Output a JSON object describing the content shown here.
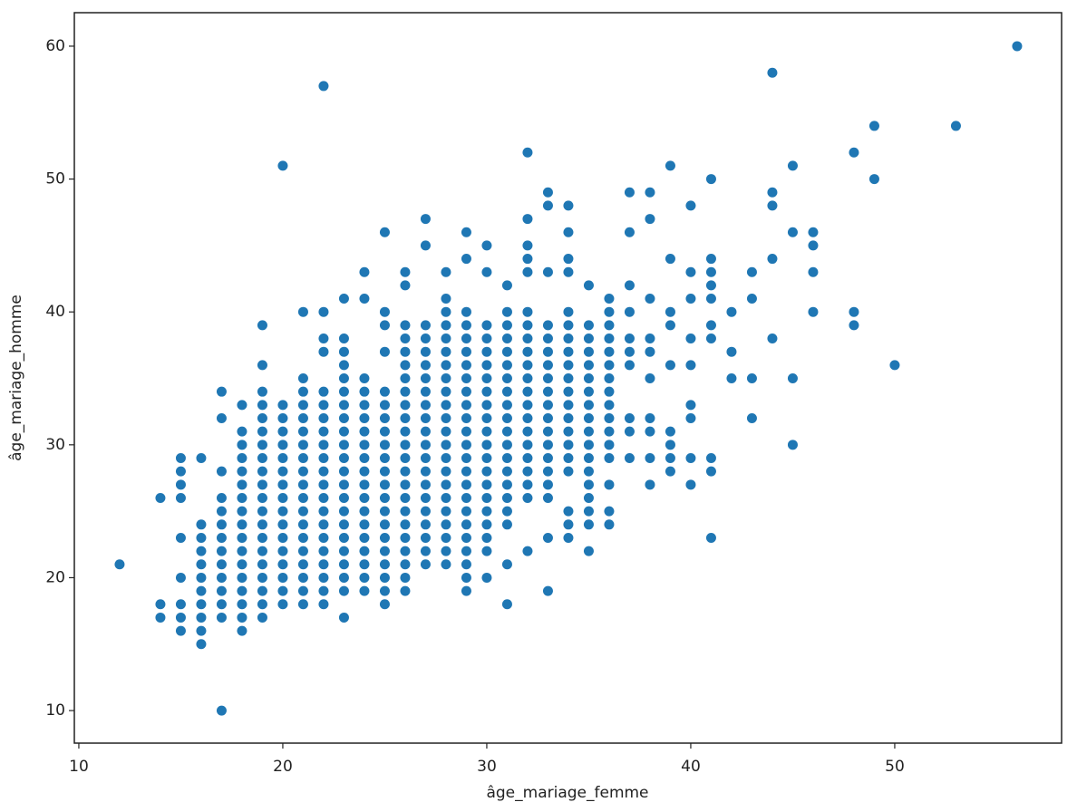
{
  "chart_data": {
    "type": "scatter",
    "xlabel": "âge_mariage_femme",
    "ylabel": "âge_mariage_homme",
    "color": "#1f77b4",
    "xlim": [
      9.78,
      58.18
    ],
    "ylim": [
      7.55,
      62.52
    ],
    "xticks": [
      10,
      20,
      30,
      40,
      50
    ],
    "yticks": [
      10,
      20,
      30,
      40,
      50,
      60
    ],
    "x": [
      12,
      14,
      14,
      14,
      15,
      15,
      15,
      15,
      15,
      15,
      15,
      15,
      15,
      16,
      16,
      16,
      16,
      16,
      16,
      16,
      16,
      16,
      16,
      16,
      17,
      17,
      17,
      17,
      17,
      17,
      17,
      17,
      17,
      17,
      17,
      17,
      17,
      17,
      18,
      18,
      18,
      18,
      18,
      18,
      18,
      18,
      18,
      18,
      18,
      18,
      18,
      18,
      18,
      18,
      18,
      19,
      19,
      19,
      19,
      19,
      19,
      19,
      19,
      19,
      19,
      19,
      19,
      19,
      19,
      19,
      19,
      19,
      19,
      19,
      19,
      20,
      20,
      20,
      20,
      20,
      20,
      20,
      20,
      20,
      20,
      20,
      20,
      20,
      20,
      20,
      20,
      20,
      21,
      21,
      21,
      21,
      21,
      21,
      21,
      21,
      21,
      21,
      21,
      21,
      21,
      21,
      21,
      21,
      21,
      21,
      21,
      22,
      22,
      22,
      22,
      22,
      22,
      22,
      22,
      22,
      22,
      22,
      22,
      22,
      22,
      22,
      22,
      22,
      22,
      22,
      22,
      22,
      23,
      23,
      23,
      23,
      23,
      23,
      23,
      23,
      23,
      23,
      23,
      23,
      23,
      23,
      23,
      23,
      23,
      23,
      23,
      23,
      23,
      23,
      24,
      24,
      24,
      24,
      24,
      24,
      24,
      24,
      24,
      24,
      24,
      24,
      24,
      24,
      24,
      24,
      24,
      24,
      24,
      25,
      25,
      25,
      25,
      25,
      25,
      25,
      25,
      25,
      25,
      25,
      25,
      25,
      25,
      25,
      25,
      25,
      25,
      25,
      25,
      25,
      26,
      26,
      26,
      26,
      26,
      26,
      26,
      26,
      26,
      26,
      26,
      26,
      26,
      26,
      26,
      26,
      26,
      26,
      26,
      26,
      26,
      26,
      26,
      27,
      27,
      27,
      27,
      27,
      27,
      27,
      27,
      27,
      27,
      27,
      27,
      27,
      27,
      27,
      27,
      27,
      27,
      27,
      27,
      27,
      28,
      28,
      28,
      28,
      28,
      28,
      28,
      28,
      28,
      28,
      28,
      28,
      28,
      28,
      28,
      28,
      28,
      28,
      28,
      28,
      28,
      28,
      29,
      29,
      29,
      29,
      29,
      29,
      29,
      29,
      29,
      29,
      29,
      29,
      29,
      29,
      29,
      29,
      29,
      29,
      29,
      29,
      29,
      29,
      29,
      29,
      30,
      30,
      30,
      30,
      30,
      30,
      30,
      30,
      30,
      30,
      30,
      30,
      30,
      30,
      30,
      30,
      30,
      30,
      30,
      30,
      30,
      31,
      31,
      31,
      31,
      31,
      31,
      31,
      31,
      31,
      31,
      31,
      31,
      31,
      31,
      31,
      31,
      31,
      31,
      31,
      31,
      32,
      32,
      32,
      32,
      32,
      32,
      32,
      32,
      32,
      32,
      32,
      32,
      32,
      32,
      32,
      32,
      32,
      32,
      32,
      32,
      32,
      33,
      33,
      33,
      33,
      33,
      33,
      33,
      33,
      33,
      33,
      33,
      33,
      33,
      33,
      33,
      33,
      33,
      33,
      33,
      34,
      34,
      34,
      34,
      34,
      34,
      34,
      34,
      34,
      34,
      34,
      34,
      34,
      34,
      34,
      34,
      34,
      34,
      34,
      34,
      35,
      35,
      35,
      35,
      35,
      35,
      35,
      35,
      35,
      35,
      35,
      35,
      35,
      35,
      35,
      35,
      35,
      35,
      36,
      36,
      36,
      36,
      36,
      36,
      36,
      36,
      36,
      36,
      36,
      36,
      36,
      36,
      36,
      36,
      37,
      37,
      37,
      37,
      37,
      37,
      37,
      37,
      37,
      37,
      38,
      38,
      38,
      38,
      38,
      38,
      38,
      38,
      38,
      38,
      39,
      39,
      39,
      39,
      39,
      39,
      39,
      39,
      39,
      40,
      40,
      40,
      40,
      40,
      40,
      40,
      40,
      40,
      41,
      41,
      41,
      41,
      41,
      41,
      41,
      41,
      41,
      41,
      42,
      42,
      42,
      43,
      43,
      43,
      43,
      44,
      44,
      44,
      44,
      44,
      45,
      45,
      45,
      45,
      46,
      46,
      46,
      46,
      48,
      48,
      48,
      49,
      49,
      50,
      53,
      56
    ],
    "values": [
      21,
      17,
      18,
      26,
      16,
      17,
      18,
      20,
      23,
      26,
      27,
      28,
      29,
      15,
      16,
      17,
      18,
      19,
      20,
      21,
      22,
      23,
      24,
      29,
      10,
      17,
      18,
      19,
      20,
      21,
      22,
      23,
      24,
      25,
      26,
      28,
      32,
      34,
      16,
      17,
      18,
      19,
      20,
      21,
      22,
      23,
      24,
      25,
      26,
      27,
      28,
      29,
      30,
      31,
      33,
      17,
      18,
      19,
      20,
      21,
      22,
      23,
      24,
      25,
      26,
      27,
      28,
      29,
      30,
      31,
      32,
      33,
      34,
      36,
      39,
      18,
      19,
      20,
      21,
      22,
      23,
      24,
      25,
      26,
      27,
      28,
      29,
      30,
      31,
      32,
      33,
      51,
      18,
      19,
      20,
      21,
      22,
      23,
      24,
      25,
      26,
      27,
      28,
      29,
      30,
      31,
      32,
      33,
      34,
      35,
      40,
      18,
      19,
      20,
      21,
      22,
      23,
      24,
      25,
      26,
      27,
      28,
      29,
      30,
      31,
      32,
      33,
      34,
      37,
      38,
      40,
      57,
      17,
      19,
      20,
      21,
      22,
      23,
      24,
      25,
      26,
      27,
      28,
      29,
      30,
      31,
      32,
      33,
      34,
      35,
      36,
      37,
      38,
      41,
      19,
      20,
      21,
      22,
      23,
      24,
      25,
      26,
      27,
      28,
      29,
      30,
      31,
      32,
      33,
      34,
      35,
      41,
      43,
      18,
      19,
      20,
      21,
      22,
      23,
      24,
      25,
      26,
      27,
      28,
      29,
      30,
      31,
      32,
      33,
      34,
      37,
      39,
      40,
      46,
      19,
      20,
      21,
      22,
      23,
      24,
      25,
      26,
      27,
      28,
      29,
      30,
      31,
      32,
      33,
      34,
      35,
      36,
      37,
      38,
      39,
      42,
      43,
      21,
      22,
      23,
      24,
      25,
      26,
      27,
      28,
      29,
      30,
      31,
      32,
      33,
      34,
      35,
      36,
      37,
      38,
      39,
      45,
      47,
      21,
      22,
      23,
      24,
      25,
      26,
      27,
      28,
      29,
      30,
      31,
      32,
      33,
      34,
      35,
      36,
      37,
      38,
      39,
      40,
      41,
      43,
      19,
      20,
      21,
      22,
      23,
      24,
      25,
      26,
      27,
      28,
      29,
      30,
      31,
      32,
      33,
      34,
      35,
      36,
      37,
      38,
      39,
      40,
      44,
      46,
      20,
      22,
      23,
      24,
      25,
      26,
      27,
      28,
      29,
      30,
      31,
      32,
      33,
      34,
      35,
      36,
      37,
      38,
      39,
      43,
      45,
      18,
      21,
      24,
      25,
      26,
      27,
      28,
      29,
      30,
      31,
      32,
      33,
      34,
      35,
      36,
      37,
      38,
      39,
      40,
      42,
      22,
      26,
      27,
      28,
      29,
      30,
      31,
      32,
      33,
      34,
      35,
      36,
      37,
      38,
      39,
      40,
      43,
      44,
      45,
      47,
      52,
      19,
      23,
      26,
      27,
      28,
      29,
      30,
      31,
      32,
      33,
      34,
      35,
      36,
      37,
      38,
      39,
      43,
      48,
      49,
      23,
      24,
      25,
      28,
      29,
      30,
      31,
      32,
      33,
      34,
      35,
      36,
      37,
      38,
      39,
      40,
      43,
      44,
      46,
      48,
      22,
      24,
      25,
      26,
      27,
      28,
      29,
      30,
      31,
      32,
      33,
      34,
      35,
      36,
      37,
      38,
      39,
      42,
      24,
      25,
      27,
      29,
      30,
      31,
      32,
      33,
      34,
      35,
      36,
      37,
      38,
      39,
      40,
      41,
      29,
      31,
      32,
      36,
      37,
      38,
      40,
      42,
      46,
      49,
      27,
      29,
      31,
      32,
      35,
      37,
      38,
      41,
      47,
      49,
      28,
      29,
      30,
      31,
      36,
      39,
      40,
      44,
      51,
      27,
      29,
      32,
      33,
      36,
      38,
      41,
      43,
      48,
      23,
      28,
      29,
      38,
      39,
      41,
      42,
      43,
      44,
      50,
      35,
      37,
      40,
      32,
      35,
      41,
      43,
      38,
      44,
      48,
      49,
      58,
      30,
      35,
      46,
      51,
      40,
      43,
      45,
      46,
      39,
      40,
      52,
      50,
      54,
      36,
      54,
      60
    ]
  }
}
